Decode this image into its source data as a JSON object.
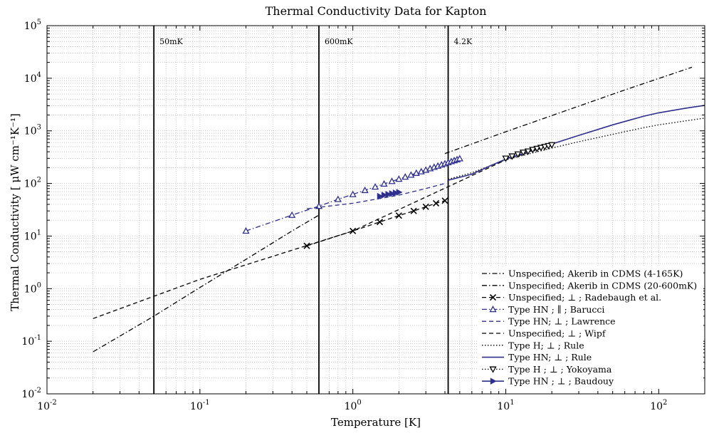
{
  "chart_data": {
    "type": "line",
    "title": "Thermal Conductivity Data for Kapton",
    "xlabel": "Temperature [K]",
    "ylabel": "Thermal Conductivity [ μW cm⁻¹K⁻¹]",
    "xscale": "log",
    "yscale": "log",
    "xlim": [
      0.01,
      200
    ],
    "ylim": [
      0.01,
      100000
    ],
    "grid": true,
    "legend_position": "bottom-right",
    "x_ticks": [
      {
        "base": "10",
        "exp": "-2",
        "value": 0.01
      },
      {
        "base": "10",
        "exp": "-1",
        "value": 0.1
      },
      {
        "base": "10",
        "exp": "0",
        "value": 1
      },
      {
        "base": "10",
        "exp": "1",
        "value": 10
      },
      {
        "base": "10",
        "exp": "2",
        "value": 100
      }
    ],
    "y_ticks": [
      {
        "base": "10",
        "exp": "-2",
        "value": 0.01
      },
      {
        "base": "10",
        "exp": "-1",
        "value": 0.1
      },
      {
        "base": "10",
        "exp": "0",
        "value": 1
      },
      {
        "base": "10",
        "exp": "1",
        "value": 10
      },
      {
        "base": "10",
        "exp": "2",
        "value": 100
      },
      {
        "base": "10",
        "exp": "3",
        "value": 1000
      },
      {
        "base": "10",
        "exp": "4",
        "value": 10000
      },
      {
        "base": "10",
        "exp": "5",
        "value": 100000
      }
    ],
    "vertical_lines": [
      {
        "x": 0.05,
        "label": "50mK"
      },
      {
        "x": 0.6,
        "label": "600mK"
      },
      {
        "x": 4.2,
        "label": "4.2K"
      }
    ],
    "series": [
      {
        "name": "Unspecified; Akerib in CDMS (4-165K)",
        "color": "#000000",
        "dash": "dashdot",
        "marker": "none",
        "x": [
          4,
          10,
          30,
          60,
          100,
          165
        ],
        "y": [
          370,
          960,
          2950,
          5980,
          9900,
          16200
        ]
      },
      {
        "name": "Unspecified; Akerib in CDMS (20-600mK)",
        "color": "#000000",
        "dash": "dashdot",
        "marker": "none",
        "x": [
          0.02,
          0.05,
          0.1,
          0.2,
          0.4,
          0.6
        ],
        "y": [
          0.063,
          0.3,
          1.05,
          3.6,
          12.5,
          25
        ]
      },
      {
        "name": "Unspecified; ⊥ ; Radebaugh et al.",
        "color": "#000000",
        "dash": "dashed",
        "marker": "x",
        "x": [
          0.5,
          1,
          1.5,
          2,
          2.5,
          3,
          3.5,
          4
        ],
        "y": [
          6.5,
          12.5,
          18.5,
          24.5,
          30,
          36,
          42,
          47
        ]
      },
      {
        "name": "Type HN ; ∥ ; Barucci",
        "color": "#2e2e8c",
        "dash": "dashdot",
        "marker": "triangle-up",
        "x": [
          0.2,
          0.4,
          0.6,
          0.8,
          1,
          1.2,
          1.4,
          1.6,
          1.8,
          2,
          2.2,
          2.4,
          2.6,
          2.8,
          3,
          3.2,
          3.4,
          3.6,
          3.8,
          4,
          4.2,
          4.4,
          4.6,
          4.8,
          5
        ],
        "y": [
          12.5,
          25,
          37,
          50,
          62,
          74,
          86,
          98,
          110,
          121,
          133,
          145,
          157,
          168,
          180,
          192,
          204,
          215,
          227,
          238,
          250,
          262,
          273,
          285,
          297
        ]
      },
      {
        "name": "Type HN; ⊥ ; Lawrence",
        "color": "#2e2e8c",
        "dash": "dashed",
        "marker": "none",
        "x": [
          0.5,
          1,
          2,
          3,
          4
        ],
        "y": [
          33,
          42,
          60,
          80,
          100
        ]
      },
      {
        "name": "Unspecified; ⊥ ; Wipf",
        "color": "#000000",
        "dash": "dashed",
        "marker": "none",
        "x": [
          0.02,
          0.1,
          1,
          10,
          20
        ],
        "y": [
          0.27,
          1.5,
          12.5,
          280,
          540
        ]
      },
      {
        "name": "Type H; ⊥ ; Rule",
        "color": "#000000",
        "dash": "dotted",
        "marker": "none",
        "x": [
          4.2,
          6,
          10,
          15,
          20,
          30,
          50,
          80,
          100,
          150,
          200
        ],
        "y": [
          120,
          160,
          280,
          380,
          470,
          620,
          860,
          1150,
          1300,
          1550,
          1750
        ]
      },
      {
        "name": "Type HN; ⊥ ; Rule",
        "color": "#2e2e8c",
        "dash": "solid",
        "marker": "none",
        "x": [
          4.2,
          6,
          8,
          10,
          15,
          20,
          30,
          50,
          80,
          100,
          150,
          200
        ],
        "y": [
          115,
          150,
          220,
          290,
          420,
          560,
          820,
          1300,
          1900,
          2200,
          2700,
          3050
        ]
      },
      {
        "name": "Type H ; ⊥ ; Yokoyama",
        "color": "#000000",
        "dash": "dotted",
        "marker": "triangle-down",
        "x": [
          10,
          11,
          12,
          13,
          14,
          15,
          16,
          17,
          18,
          19,
          20
        ],
        "y": [
          300,
          330,
          360,
          390,
          410,
          440,
          460,
          480,
          500,
          520,
          540
        ]
      },
      {
        "name": "Type HN ; ⊥ ; Baudouy",
        "color": "#2e2e8c",
        "dash": "solid",
        "marker": "triangle-right",
        "x": [
          1.5,
          1.6,
          1.7,
          1.8,
          1.9,
          2
        ],
        "y": [
          57,
          60,
          62,
          64,
          66,
          68
        ]
      }
    ]
  }
}
